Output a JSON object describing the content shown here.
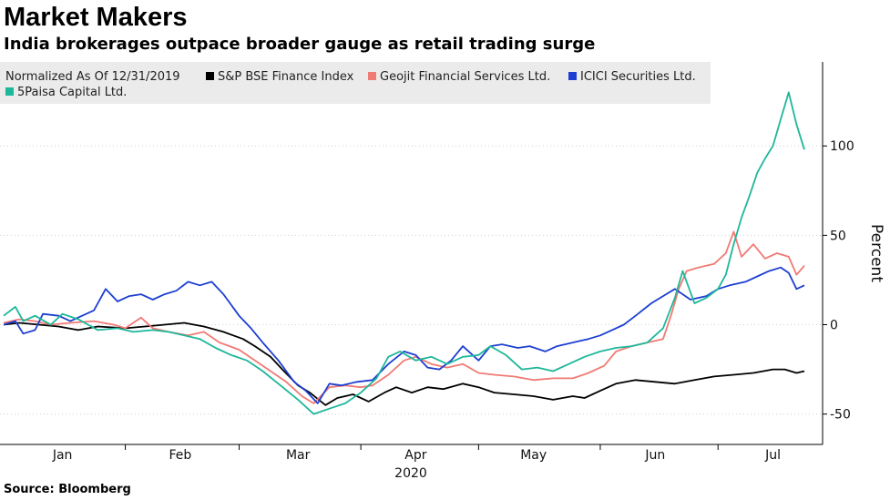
{
  "header": {
    "title": "Market Makers",
    "subtitle": "India brokerages outpace broader gauge as retail trading surge"
  },
  "footer": {
    "source": "Source: Bloomberg"
  },
  "chart_data": {
    "type": "line",
    "title": "Market Makers",
    "subtitle": "India brokerages outpace broader gauge as retail trading surge",
    "legend_title": "Normalized As Of 12/31/2019",
    "legend_position": "top-left",
    "xlabel": "2020",
    "ylabel": "Percent",
    "ylim": [
      -67,
      147
    ],
    "yticks": [
      100,
      50,
      0,
      -50
    ],
    "ytick_labels": [
      "100",
      "50",
      "0",
      "-50"
    ],
    "y_axis_side": "right",
    "x_domain": [
      "2020-01-01",
      "2020-07-23"
    ],
    "x_ticks": [
      {
        "label": "Jan",
        "date": "2020-01-16"
      },
      {
        "label": "Feb",
        "date": "2020-02-15"
      },
      {
        "label": "Mar",
        "date": "2020-03-16"
      },
      {
        "label": "Apr",
        "date": "2020-04-15"
      },
      {
        "label": "May",
        "date": "2020-05-15"
      },
      {
        "label": "Jun",
        "date": "2020-06-15"
      },
      {
        "label": "Jul",
        "date": "2020-07-15"
      }
    ],
    "x_year_label": "2020",
    "series": [
      {
        "name": "S&P BSE Finance Index",
        "color": "#000000",
        "points": [
          [
            "2020-01-01",
            0
          ],
          [
            "2020-01-05",
            1
          ],
          [
            "2020-01-10",
            0
          ],
          [
            "2020-01-15",
            -1
          ],
          [
            "2020-01-20",
            -3
          ],
          [
            "2020-01-25",
            -1
          ],
          [
            "2020-02-01",
            -2
          ],
          [
            "2020-02-06",
            -1
          ],
          [
            "2020-02-11",
            0
          ],
          [
            "2020-02-16",
            1
          ],
          [
            "2020-02-21",
            -1
          ],
          [
            "2020-02-26",
            -4
          ],
          [
            "2020-03-02",
            -8
          ],
          [
            "2020-03-05",
            -12
          ],
          [
            "2020-03-09",
            -18
          ],
          [
            "2020-03-12",
            -25
          ],
          [
            "2020-03-16",
            -34
          ],
          [
            "2020-03-19",
            -38
          ],
          [
            "2020-03-23",
            -45
          ],
          [
            "2020-03-26",
            -41
          ],
          [
            "2020-03-30",
            -39
          ],
          [
            "2020-04-03",
            -43
          ],
          [
            "2020-04-07",
            -38
          ],
          [
            "2020-04-10",
            -35
          ],
          [
            "2020-04-14",
            -38
          ],
          [
            "2020-04-18",
            -35
          ],
          [
            "2020-04-22",
            -36
          ],
          [
            "2020-04-27",
            -33
          ],
          [
            "2020-05-01",
            -35
          ],
          [
            "2020-05-05",
            -38
          ],
          [
            "2020-05-10",
            -39
          ],
          [
            "2020-05-15",
            -40
          ],
          [
            "2020-05-20",
            -42
          ],
          [
            "2020-05-25",
            -40
          ],
          [
            "2020-05-28",
            -41
          ],
          [
            "2020-06-01",
            -37
          ],
          [
            "2020-06-05",
            -33
          ],
          [
            "2020-06-10",
            -31
          ],
          [
            "2020-06-15",
            -32
          ],
          [
            "2020-06-20",
            -33
          ],
          [
            "2020-06-25",
            -31
          ],
          [
            "2020-06-30",
            -29
          ],
          [
            "2020-07-05",
            -28
          ],
          [
            "2020-07-10",
            -27
          ],
          [
            "2020-07-15",
            -25
          ],
          [
            "2020-07-18",
            -25
          ],
          [
            "2020-07-21",
            -27
          ],
          [
            "2020-07-23",
            -26
          ]
        ]
      },
      {
        "name": "Geojit Financial Services Ltd.",
        "color": "#f07a74",
        "points": [
          [
            "2020-01-01",
            1
          ],
          [
            "2020-01-05",
            3
          ],
          [
            "2020-01-09",
            2
          ],
          [
            "2020-01-13",
            0
          ],
          [
            "2020-01-18",
            1
          ],
          [
            "2020-01-24",
            2
          ],
          [
            "2020-01-29",
            0
          ],
          [
            "2020-02-01",
            -2
          ],
          [
            "2020-02-05",
            4
          ],
          [
            "2020-02-08",
            -2
          ],
          [
            "2020-02-12",
            -4
          ],
          [
            "2020-02-17",
            -6
          ],
          [
            "2020-02-21",
            -4
          ],
          [
            "2020-02-25",
            -10
          ],
          [
            "2020-03-01",
            -14
          ],
          [
            "2020-03-05",
            -20
          ],
          [
            "2020-03-09",
            -26
          ],
          [
            "2020-03-13",
            -32
          ],
          [
            "2020-03-17",
            -40
          ],
          [
            "2020-03-20",
            -44
          ],
          [
            "2020-03-24",
            -35
          ],
          [
            "2020-03-28",
            -34
          ],
          [
            "2020-04-01",
            -35
          ],
          [
            "2020-04-04",
            -34
          ],
          [
            "2020-04-08",
            -28
          ],
          [
            "2020-04-12",
            -20
          ],
          [
            "2020-04-15",
            -18
          ],
          [
            "2020-04-19",
            -22
          ],
          [
            "2020-04-23",
            -24
          ],
          [
            "2020-04-27",
            -22
          ],
          [
            "2020-05-01",
            -27
          ],
          [
            "2020-05-05",
            -28
          ],
          [
            "2020-05-10",
            -29
          ],
          [
            "2020-05-15",
            -31
          ],
          [
            "2020-05-20",
            -30
          ],
          [
            "2020-05-25",
            -30
          ],
          [
            "2020-05-29",
            -27
          ],
          [
            "2020-06-02",
            -23
          ],
          [
            "2020-06-05",
            -15
          ],
          [
            "2020-06-09",
            -12
          ],
          [
            "2020-06-13",
            -10
          ],
          [
            "2020-06-17",
            -8
          ],
          [
            "2020-06-19",
            5
          ],
          [
            "2020-06-21",
            20
          ],
          [
            "2020-06-23",
            30
          ],
          [
            "2020-06-26",
            32
          ],
          [
            "2020-06-30",
            34
          ],
          [
            "2020-07-03",
            40
          ],
          [
            "2020-07-05",
            52
          ],
          [
            "2020-07-07",
            38
          ],
          [
            "2020-07-10",
            45
          ],
          [
            "2020-07-13",
            37
          ],
          [
            "2020-07-16",
            40
          ],
          [
            "2020-07-19",
            38
          ],
          [
            "2020-07-21",
            28
          ],
          [
            "2020-07-23",
            33
          ]
        ]
      },
      {
        "name": "ICICI Securities Ltd.",
        "color": "#1d3fd1",
        "points": [
          [
            "2020-01-01",
            0
          ],
          [
            "2020-01-04",
            2
          ],
          [
            "2020-01-06",
            -5
          ],
          [
            "2020-01-09",
            -3
          ],
          [
            "2020-01-11",
            6
          ],
          [
            "2020-01-15",
            5
          ],
          [
            "2020-01-18",
            2
          ],
          [
            "2020-01-21",
            5
          ],
          [
            "2020-01-24",
            8
          ],
          [
            "2020-01-27",
            20
          ],
          [
            "2020-01-30",
            13
          ],
          [
            "2020-02-02",
            16
          ],
          [
            "2020-02-05",
            17
          ],
          [
            "2020-02-08",
            14
          ],
          [
            "2020-02-11",
            17
          ],
          [
            "2020-02-14",
            19
          ],
          [
            "2020-02-17",
            24
          ],
          [
            "2020-02-20",
            22
          ],
          [
            "2020-02-23",
            24
          ],
          [
            "2020-02-26",
            17
          ],
          [
            "2020-03-01",
            5
          ],
          [
            "2020-03-04",
            -2
          ],
          [
            "2020-03-07",
            -10
          ],
          [
            "2020-03-11",
            -20
          ],
          [
            "2020-03-15",
            -32
          ],
          [
            "2020-03-18",
            -37
          ],
          [
            "2020-03-21",
            -44
          ],
          [
            "2020-03-24",
            -33
          ],
          [
            "2020-03-27",
            -34
          ],
          [
            "2020-03-31",
            -32
          ],
          [
            "2020-04-04",
            -31
          ],
          [
            "2020-04-08",
            -22
          ],
          [
            "2020-04-12",
            -15
          ],
          [
            "2020-04-15",
            -17
          ],
          [
            "2020-04-18",
            -24
          ],
          [
            "2020-04-21",
            -25
          ],
          [
            "2020-04-24",
            -20
          ],
          [
            "2020-04-27",
            -12
          ],
          [
            "2020-05-01",
            -20
          ],
          [
            "2020-05-04",
            -12
          ],
          [
            "2020-05-07",
            -11
          ],
          [
            "2020-05-11",
            -13
          ],
          [
            "2020-05-14",
            -12
          ],
          [
            "2020-05-18",
            -15
          ],
          [
            "2020-05-21",
            -12
          ],
          [
            "2020-05-25",
            -10
          ],
          [
            "2020-05-29",
            -8
          ],
          [
            "2020-06-01",
            -6
          ],
          [
            "2020-06-04",
            -3
          ],
          [
            "2020-06-07",
            0
          ],
          [
            "2020-06-10",
            5
          ],
          [
            "2020-06-14",
            12
          ],
          [
            "2020-06-17",
            16
          ],
          [
            "2020-06-20",
            20
          ],
          [
            "2020-06-24",
            14
          ],
          [
            "2020-06-28",
            16
          ],
          [
            "2020-07-01",
            20
          ],
          [
            "2020-07-04",
            22
          ],
          [
            "2020-07-08",
            24
          ],
          [
            "2020-07-11",
            27
          ],
          [
            "2020-07-14",
            30
          ],
          [
            "2020-07-17",
            32
          ],
          [
            "2020-07-19",
            29
          ],
          [
            "2020-07-21",
            20
          ],
          [
            "2020-07-23",
            22
          ]
        ]
      },
      {
        "name": "5Paisa Capital Ltd.",
        "color": "#1db79a",
        "points": [
          [
            "2020-01-01",
            5
          ],
          [
            "2020-01-04",
            10
          ],
          [
            "2020-01-06",
            2
          ],
          [
            "2020-01-09",
            5
          ],
          [
            "2020-01-13",
            0
          ],
          [
            "2020-01-16",
            6
          ],
          [
            "2020-01-20",
            3
          ],
          [
            "2020-01-25",
            -3
          ],
          [
            "2020-01-30",
            -2
          ],
          [
            "2020-02-03",
            -4
          ],
          [
            "2020-02-08",
            -3
          ],
          [
            "2020-02-12",
            -4
          ],
          [
            "2020-02-16",
            -6
          ],
          [
            "2020-02-20",
            -8
          ],
          [
            "2020-02-24",
            -13
          ],
          [
            "2020-02-28",
            -17
          ],
          [
            "2020-03-03",
            -20
          ],
          [
            "2020-03-07",
            -26
          ],
          [
            "2020-03-11",
            -33
          ],
          [
            "2020-03-16",
            -42
          ],
          [
            "2020-03-20",
            -50
          ],
          [
            "2020-03-24",
            -47
          ],
          [
            "2020-03-28",
            -44
          ],
          [
            "2020-04-01",
            -38
          ],
          [
            "2020-04-05",
            -30
          ],
          [
            "2020-04-08",
            -18
          ],
          [
            "2020-04-11",
            -15
          ],
          [
            "2020-04-15",
            -20
          ],
          [
            "2020-04-19",
            -18
          ],
          [
            "2020-04-23",
            -22
          ],
          [
            "2020-04-27",
            -18
          ],
          [
            "2020-05-01",
            -17
          ],
          [
            "2020-05-04",
            -12
          ],
          [
            "2020-05-08",
            -17
          ],
          [
            "2020-05-12",
            -25
          ],
          [
            "2020-05-16",
            -24
          ],
          [
            "2020-05-20",
            -26
          ],
          [
            "2020-05-24",
            -22
          ],
          [
            "2020-05-28",
            -18
          ],
          [
            "2020-06-01",
            -15
          ],
          [
            "2020-06-05",
            -13
          ],
          [
            "2020-06-09",
            -12
          ],
          [
            "2020-06-13",
            -10
          ],
          [
            "2020-06-17",
            -2
          ],
          [
            "2020-06-20",
            15
          ],
          [
            "2020-06-22",
            30
          ],
          [
            "2020-06-25",
            12
          ],
          [
            "2020-06-28",
            15
          ],
          [
            "2020-07-01",
            20
          ],
          [
            "2020-07-03",
            28
          ],
          [
            "2020-07-05",
            45
          ],
          [
            "2020-07-07",
            60
          ],
          [
            "2020-07-09",
            72
          ],
          [
            "2020-07-11",
            85
          ],
          [
            "2020-07-13",
            93
          ],
          [
            "2020-07-15",
            100
          ],
          [
            "2020-07-17",
            115
          ],
          [
            "2020-07-19",
            130
          ],
          [
            "2020-07-21",
            112
          ],
          [
            "2020-07-23",
            98
          ]
        ]
      }
    ]
  }
}
